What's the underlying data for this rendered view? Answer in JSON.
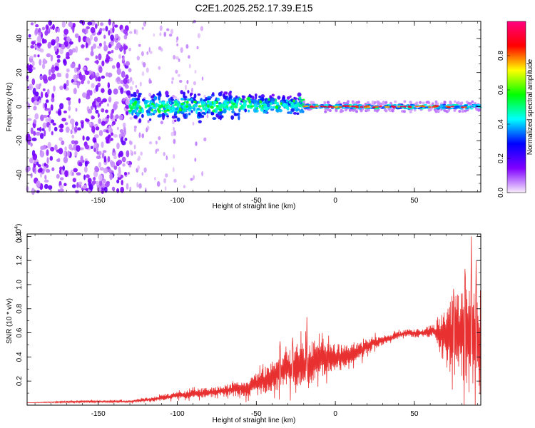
{
  "title": "C2E1.2025.252.17.39.E15",
  "chart_data": [
    {
      "type": "heatmap",
      "name": "spectrogram",
      "xlabel": "Height of straight line (km)",
      "ylabel": "Frequency (Hz)",
      "xlim": [
        -195,
        92
      ],
      "ylim": [
        -50,
        50
      ],
      "x_ticks": [
        -150,
        -100,
        -50,
        0,
        50
      ],
      "y_ticks": [
        -40,
        -20,
        0,
        20,
        40
      ],
      "colorbar": {
        "label": "Normalized spectral amplitude",
        "range": [
          0,
          1
        ],
        "ticks": [
          0.0,
          0.2,
          0.4,
          0.6,
          0.8
        ],
        "tick_labels": [
          "0.0",
          "0.2",
          "0.4",
          "0.6",
          "0.8"
        ],
        "colors": [
          "#f8ecfb",
          "#8000ff",
          "#0000ff",
          "#00ffff",
          "#00ff00",
          "#ffff00",
          "#ff0000",
          "#ff0080"
        ]
      },
      "features": [
        {
          "region": "scattered noise",
          "x": [
            -195,
            -130
          ],
          "freq": [
            -50,
            50
          ],
          "amplitude": 0.1
        },
        {
          "region": "faint fringe",
          "x": [
            -130,
            -80
          ],
          "freq": [
            -50,
            50
          ],
          "amplitude": 0.05
        },
        {
          "region": "broad signal band",
          "x": [
            -130,
            -20
          ],
          "freq": [
            -8,
            8
          ],
          "amplitude": 0.35
        },
        {
          "region": "narrow strong line",
          "x": [
            -20,
            92
          ],
          "freq": [
            -2,
            2
          ],
          "amplitude": 0.85
        }
      ]
    },
    {
      "type": "line",
      "name": "snr",
      "xlabel": "Height of straight line (km)",
      "ylabel": "SNR (10 * v/v)",
      "y_multiplier": "(x10^4)",
      "y_multiplier_base": "(x10",
      "y_multiplier_exp": "4",
      "y_multiplier_close": ")",
      "xlim": [
        -195,
        92
      ],
      "ylim": [
        0,
        1.42
      ],
      "x_ticks": [
        -150,
        -100,
        -50,
        0,
        50
      ],
      "y_ticks": [
        0.2,
        0.4,
        0.6,
        0.8,
        1.0,
        1.2,
        1.4
      ],
      "y_tick_labels": [
        "0.2",
        "0.4",
        "0.6",
        "0.8",
        "1.0",
        "1.2",
        "1.4"
      ],
      "color": "#e83030",
      "x": [
        -195,
        -160,
        -130,
        -115,
        -100,
        -85,
        -70,
        -55,
        -45,
        -35,
        -25,
        -15,
        -5,
        5,
        15,
        25,
        35,
        45,
        55,
        62,
        70,
        75,
        80,
        85,
        88,
        92
      ],
      "y": [
        0.02,
        0.03,
        0.03,
        0.05,
        0.08,
        0.1,
        0.12,
        0.15,
        0.2,
        0.28,
        0.32,
        0.35,
        0.38,
        0.4,
        0.45,
        0.52,
        0.56,
        0.6,
        0.6,
        0.62,
        0.55,
        0.6,
        0.6,
        0.6,
        0.55,
        0.5
      ],
      "noise_amplitude": [
        0.0,
        0.01,
        0.01,
        0.02,
        0.03,
        0.04,
        0.05,
        0.08,
        0.12,
        0.15,
        0.18,
        0.18,
        0.15,
        0.1,
        0.08,
        0.05,
        0.03,
        0.03,
        0.04,
        0.05,
        0.25,
        0.35,
        0.4,
        0.55,
        0.5,
        0.45
      ],
      "peaks": [
        {
          "x": -35,
          "y": 0.53
        },
        {
          "x": -27,
          "y": 0.56
        },
        {
          "x": -18,
          "y": 0.73
        },
        {
          "x": 75,
          "y": 0.9
        },
        {
          "x": 82,
          "y": 1.13
        },
        {
          "x": 86,
          "y": 1.4
        },
        {
          "x": 89,
          "y": 1.2
        }
      ]
    }
  ]
}
